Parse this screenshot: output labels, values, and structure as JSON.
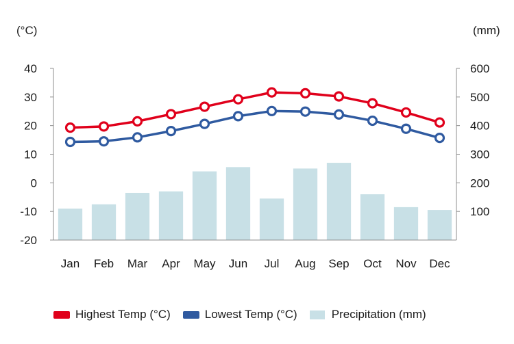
{
  "chart_data": {
    "type": "bar+line",
    "categories": [
      "Jan",
      "Feb",
      "Mar",
      "Apr",
      "May",
      "Jun",
      "Jul",
      "Aug",
      "Sep",
      "Oct",
      "Nov",
      "Dec"
    ],
    "left_axis": {
      "unit_label": "(°C)",
      "min": -20,
      "max": 40,
      "ticks": [
        40,
        30,
        20,
        10,
        0,
        -10,
        -20
      ]
    },
    "right_axis": {
      "unit_label": "(mm)",
      "min": 0,
      "max": 600,
      "ticks": [
        600,
        500,
        400,
        300,
        200,
        100
      ]
    },
    "series": [
      {
        "name": "Highest Temp (°C)",
        "kind": "line",
        "axis": "left",
        "color": "#e0001b",
        "values": [
          19.3,
          19.7,
          21.5,
          24.0,
          26.6,
          29.2,
          31.6,
          31.3,
          30.2,
          27.8,
          24.6,
          21.1
        ]
      },
      {
        "name": "Lowest Temp (°C)",
        "kind": "line",
        "axis": "left",
        "color": "#2f5aa0",
        "values": [
          14.3,
          14.5,
          15.9,
          18.1,
          20.6,
          23.3,
          25.1,
          24.9,
          23.9,
          21.7,
          18.9,
          15.7
        ]
      },
      {
        "name": "Precipitation (mm)",
        "kind": "bar",
        "axis": "right",
        "color": "#c8e0e6",
        "values": [
          110,
          125,
          165,
          170,
          240,
          255,
          145,
          250,
          270,
          160,
          115,
          105
        ]
      }
    ],
    "grid": false,
    "legend_position": "bottom"
  }
}
